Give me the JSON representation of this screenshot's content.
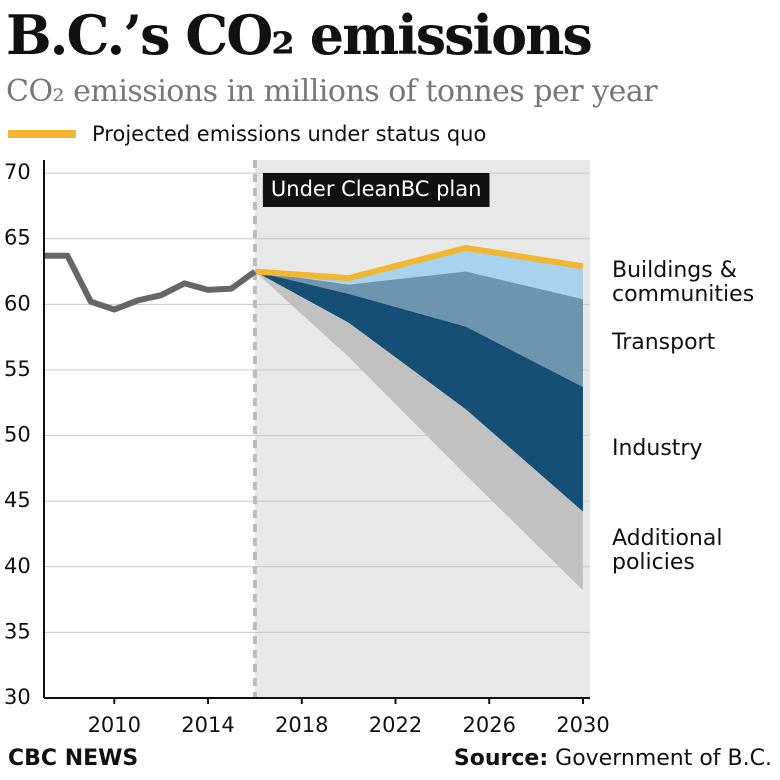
{
  "chart_data": {
    "type": "area",
    "title": "B.C.’s CO₂ emissions",
    "subtitle": "CO₂ emissions in millions of tonnes per year",
    "annotation": "Under CleanBC plan",
    "xlim": [
      2007,
      2030.3
    ],
    "xticks": [
      2010,
      2014,
      2018,
      2022,
      2026,
      2030
    ],
    "ylim": [
      30,
      71
    ],
    "yticks": [
      30,
      35,
      40,
      45,
      50,
      55,
      60,
      65,
      70
    ],
    "grid": true,
    "history": {
      "color": "#666666",
      "x": [
        2007,
        2008,
        2009,
        2010,
        2011,
        2012,
        2013,
        2014,
        2015,
        2016
      ],
      "values": [
        63.7,
        63.7,
        60.2,
        59.6,
        60.3,
        60.7,
        61.6,
        61.1,
        61.2,
        62.5
      ]
    },
    "projection": {
      "x": [
        2016,
        2020,
        2025,
        2030
      ],
      "status_quo": {
        "name": "Projected emissions under status quo",
        "color": "#f2b631",
        "values": [
          62.5,
          62.0,
          64.3,
          62.9
        ]
      },
      "reductions": [
        {
          "name": "Buildings & communities",
          "color": "#a7d3ee",
          "values": [
            0,
            0.5,
            1.8,
            2.5
          ]
        },
        {
          "name": "Transport",
          "color": "#6d95b0",
          "values": [
            0,
            0.7,
            4.2,
            6.7
          ]
        },
        {
          "name": "Industry",
          "color": "#164f75",
          "values": [
            0,
            2.2,
            6.3,
            9.5
          ]
        },
        {
          "name": "Additional policies",
          "color": "#c1c1c1",
          "values": [
            0,
            2.6,
            5.0,
            6.0
          ]
        }
      ]
    }
  },
  "footer": {
    "credit": "CBC NEWS",
    "source_label": "Source:",
    "source": "Government of B.C."
  }
}
